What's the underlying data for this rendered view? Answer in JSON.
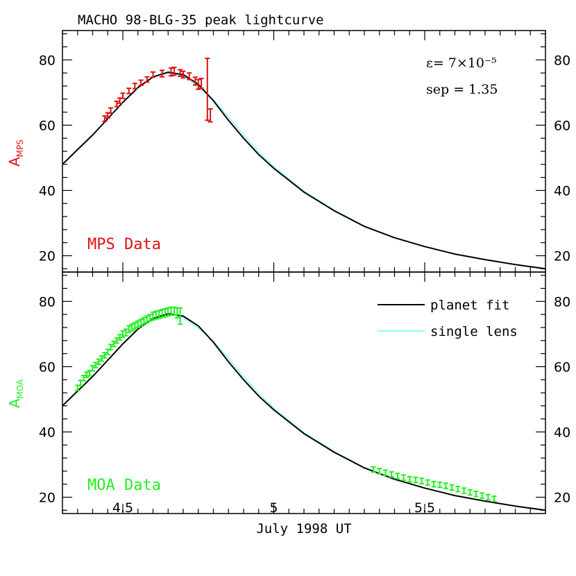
{
  "title": "MACHO 98-BLG-35 peak lightcurve",
  "xlabel": "July 1998 UT",
  "colors": {
    "axis": "#000000",
    "mps": "#dd1111",
    "moa": "#22ee22",
    "single": "#88ffff",
    "fit": "#000000"
  },
  "panels": [
    {
      "id": "mps",
      "ylabel_main": "A",
      "ylabel_sub": "MPS",
      "label": "MPS Data",
      "annotations": [
        "ε= 7×10⁻⁵",
        "sep = 1.35"
      ]
    },
    {
      "id": "moa",
      "ylabel_main": "A",
      "ylabel_sub": "MOA",
      "label": "MOA Data",
      "legend": [
        {
          "name": "planet fit",
          "color": "#000000"
        },
        {
          "name": "single lens",
          "color": "#88ffff"
        }
      ]
    }
  ],
  "chart_data": {
    "type": "scatter",
    "xlim": [
      4.3,
      5.9
    ],
    "ylim_top": [
      15,
      89
    ],
    "ylim_bottom": [
      15,
      89
    ],
    "x_ticks": [
      4.5,
      5,
      5.5
    ],
    "x_tick_labels": [
      "4.5",
      "5",
      "5.5"
    ],
    "y_ticks": [
      20,
      40,
      60,
      80
    ],
    "y_tick_labels": [
      "20",
      "40",
      "60",
      "80"
    ],
    "series": [
      {
        "name": "planet fit",
        "kind": "line",
        "x": [
          4.3,
          4.35,
          4.4,
          4.45,
          4.5,
          4.55,
          4.6,
          4.65,
          4.7,
          4.75,
          4.8,
          4.85,
          4.9,
          4.95,
          5.0,
          5.1,
          5.2,
          5.3,
          5.4,
          5.5,
          5.6,
          5.7,
          5.8,
          5.9
        ],
        "y": [
          48.0,
          52.5,
          57.0,
          62.0,
          67.0,
          71.5,
          74.8,
          76.2,
          75.5,
          72.5,
          67.5,
          61.5,
          56.0,
          51.0,
          46.8,
          39.5,
          33.8,
          29.0,
          25.5,
          22.8,
          20.5,
          18.8,
          17.3,
          16.0
        ]
      },
      {
        "name": "single lens",
        "kind": "line",
        "x": [
          4.3,
          4.35,
          4.4,
          4.45,
          4.5,
          4.55,
          4.6,
          4.65,
          4.7,
          4.75,
          4.8,
          4.85,
          4.9,
          4.95,
          5.0,
          5.1,
          5.2,
          5.3,
          5.4,
          5.5,
          5.6,
          5.7,
          5.8,
          5.9
        ],
        "y": [
          48.0,
          52.5,
          57.0,
          62.0,
          67.0,
          71.5,
          74.8,
          76.5,
          75.0,
          71.8,
          67.8,
          62.5,
          57.0,
          51.8,
          47.3,
          39.8,
          34.0,
          29.1,
          25.6,
          22.8,
          20.5,
          18.8,
          17.3,
          16.0
        ]
      },
      {
        "name": "MPS Data",
        "kind": "points",
        "x": [
          4.44,
          4.45,
          4.46,
          4.48,
          4.49,
          4.5,
          4.52,
          4.54,
          4.56,
          4.58,
          4.6,
          4.63,
          4.66,
          4.67,
          4.69,
          4.7,
          4.72,
          4.74,
          4.75,
          4.76,
          4.78,
          4.79
        ],
        "y": [
          62.0,
          63.0,
          64.5,
          66.5,
          67.5,
          69.0,
          70.5,
          72.0,
          73.0,
          74.0,
          75.5,
          75.8,
          76.3,
          76.5,
          76.0,
          75.5,
          75.0,
          73.5,
          72.5,
          72.8,
          71.0,
          63.0
        ],
        "err": [
          0.8,
          0.8,
          0.8,
          0.8,
          0.8,
          0.8,
          0.8,
          0.8,
          0.8,
          0.8,
          0.8,
          1.0,
          1.2,
          1.2,
          1.0,
          1.0,
          1.0,
          1.2,
          1.5,
          1.5,
          9.5,
          2.0
        ]
      },
      {
        "name": "MOA Data",
        "kind": "points",
        "x": [
          4.35,
          4.36,
          4.37,
          4.38,
          4.39,
          4.4,
          4.41,
          4.42,
          4.43,
          4.44,
          4.45,
          4.46,
          4.47,
          4.48,
          4.49,
          4.5,
          4.51,
          4.52,
          4.53,
          4.54,
          4.55,
          4.56,
          4.57,
          4.58,
          4.59,
          4.6,
          4.61,
          4.62,
          4.63,
          4.64,
          4.65,
          4.66,
          4.67,
          4.68,
          4.69,
          5.33,
          5.35,
          5.37,
          5.39,
          5.41,
          5.43,
          5.45,
          5.47,
          5.49,
          5.51,
          5.53,
          5.55,
          5.57,
          5.59,
          5.61,
          5.63,
          5.65,
          5.67,
          5.69,
          5.71,
          5.73
        ],
        "y": [
          53.5,
          55.0,
          56.5,
          57.5,
          58.0,
          59.5,
          60.5,
          61.5,
          62.5,
          63.5,
          64.5,
          66.0,
          67.0,
          68.0,
          69.0,
          70.0,
          70.5,
          71.5,
          72.0,
          72.5,
          73.0,
          73.5,
          74.0,
          74.5,
          75.0,
          75.5,
          75.8,
          76.0,
          76.3,
          76.5,
          76.8,
          77.0,
          77.0,
          76.5,
          75.5,
          28.5,
          28.0,
          27.5,
          27.0,
          26.5,
          26.0,
          25.5,
          25.3,
          25.0,
          24.5,
          24.0,
          23.8,
          23.5,
          23.0,
          22.5,
          22.0,
          21.5,
          21.0,
          20.5,
          20.0,
          19.5
        ],
        "err": [
          0.8,
          0.8,
          0.8,
          0.8,
          0.8,
          0.8,
          0.8,
          0.8,
          0.8,
          0.8,
          0.8,
          0.8,
          0.8,
          0.8,
          0.8,
          1.0,
          1.0,
          1.0,
          1.0,
          1.0,
          1.0,
          1.0,
          1.0,
          1.0,
          1.0,
          1.2,
          1.2,
          1.2,
          1.2,
          1.2,
          1.2,
          1.2,
          1.2,
          1.5,
          2.5,
          0.8,
          0.8,
          0.8,
          0.8,
          0.8,
          0.8,
          0.8,
          0.8,
          0.8,
          0.8,
          0.8,
          0.8,
          0.8,
          0.8,
          0.8,
          0.8,
          0.8,
          0.8,
          0.8,
          0.8,
          0.8
        ]
      }
    ],
    "series_panel": {
      "planet fit": "both",
      "single lens": "both",
      "MPS Data": "top",
      "MOA Data": "bottom"
    },
    "grid": false,
    "legend": "top-right of bottom panel"
  }
}
